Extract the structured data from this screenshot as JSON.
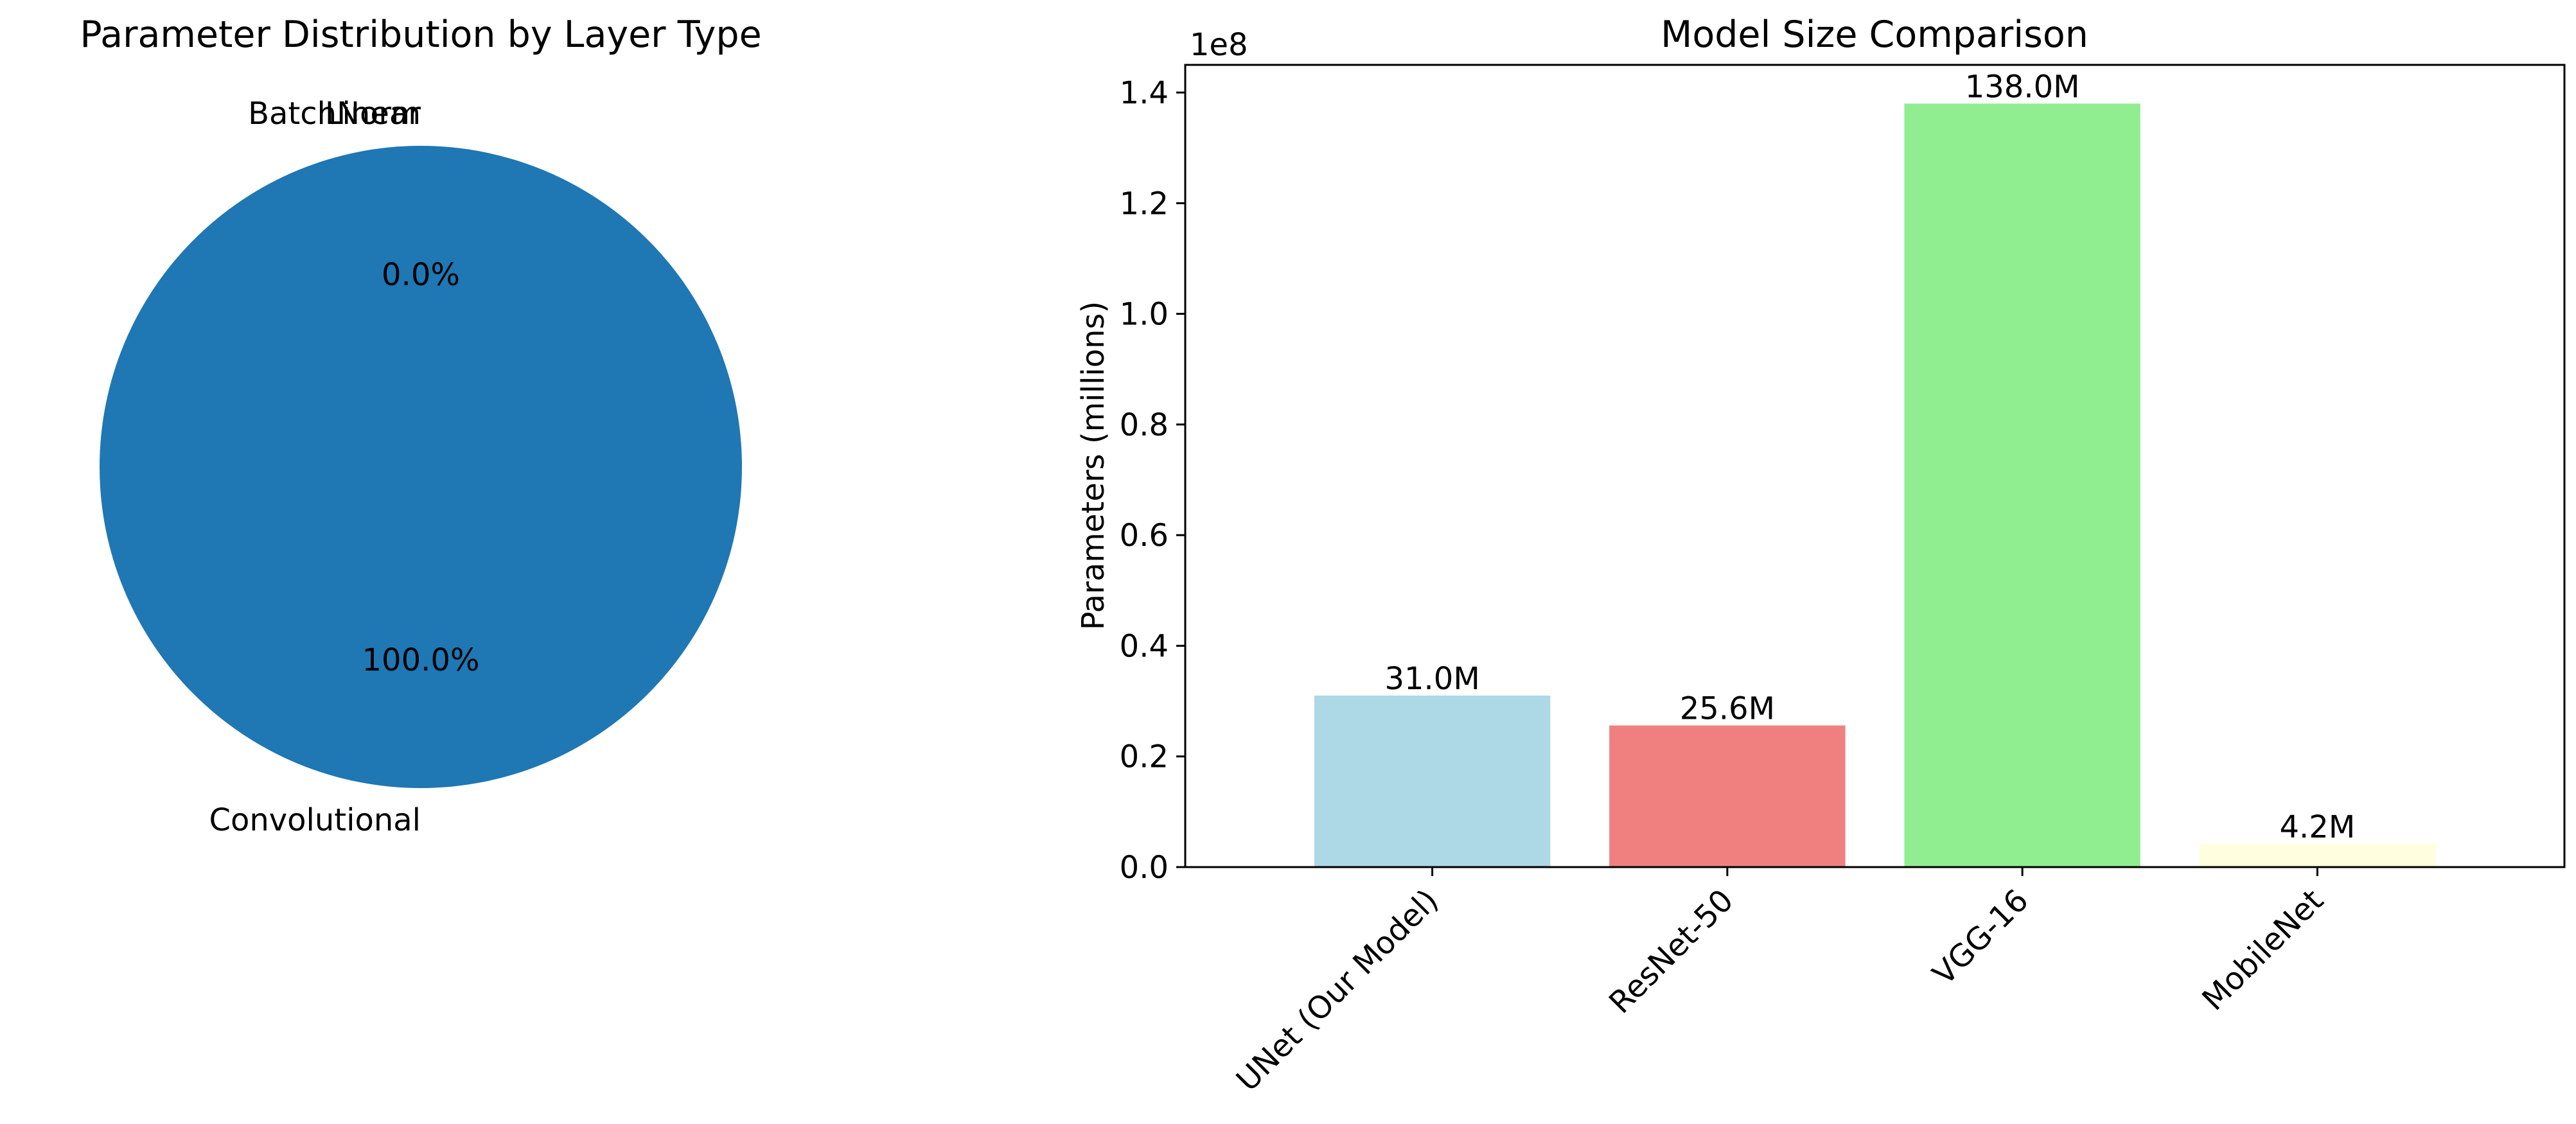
{
  "chart_data": [
    {
      "type": "pie",
      "title": "Parameter Distribution by Layer Type",
      "slices": [
        {
          "label": "Convolutional",
          "value": 100.0,
          "pct_label": "100.0%",
          "color": "#1f77b4"
        },
        {
          "label": "BatchNorm",
          "value": 0.0,
          "pct_label": "0.0%",
          "color": "#ff7f0e"
        },
        {
          "label": "Linear",
          "value": 0.0,
          "pct_label": "",
          "color": "#2ca02c"
        }
      ]
    },
    {
      "type": "bar",
      "title": "Model Size Comparison",
      "ylabel": "Parameters (millions)",
      "xlabel": "",
      "offset_text": "1e8",
      "categories": [
        "UNet (Our Model)",
        "ResNet-50",
        "VGG-16",
        "MobileNet"
      ],
      "values": [
        31000000,
        25600000,
        138000000,
        4200000
      ],
      "value_labels": [
        "31.0M",
        "25.6M",
        "138.0M",
        "4.2M"
      ],
      "colors": [
        "#add8e6",
        "#f08080",
        "#90ee90",
        "#ffffe0"
      ],
      "ylim": [
        0,
        145000000
      ],
      "yticks": [
        0,
        20000000,
        40000000,
        60000000,
        80000000,
        100000000,
        120000000,
        140000000
      ],
      "ytick_labels": [
        "0.0",
        "0.2",
        "0.4",
        "0.6",
        "0.8",
        "1.0",
        "1.2",
        "1.4"
      ],
      "grid": false
    }
  ]
}
